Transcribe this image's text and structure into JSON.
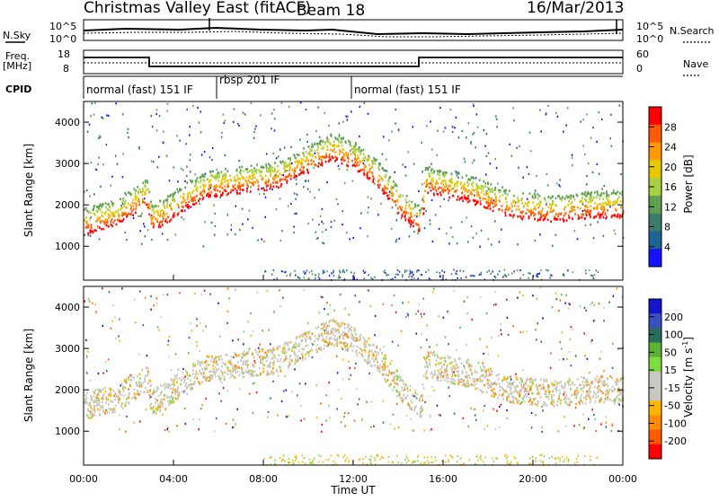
{
  "header": {
    "title": "Christmas Valley East (fitACF)",
    "beam": "Beam 18",
    "date": "16/Mar/2013"
  },
  "noise_panel": {
    "left_label": "N.Sky",
    "right_label": "N.Search",
    "y_ticks_left": [
      "10^5",
      "10^0"
    ],
    "y_ticks_right": [
      "10^5",
      "10^0"
    ]
  },
  "freq_panel": {
    "left_label_line1": "Freq.",
    "left_label_line2": "[MHz]",
    "right_label": "Nave",
    "y_ticks_left": [
      "18",
      "8"
    ],
    "y_ticks_right": [
      "60",
      "0"
    ]
  },
  "cpid_panel": {
    "label": "CPID",
    "segments": [
      {
        "label": "normal (fast) 151 IF",
        "start": 0,
        "end": 6.0
      },
      {
        "label": "rbsp 201 IF",
        "start": 6.0,
        "end": 12.0
      },
      {
        "label": "normal (fast) 151 IF",
        "start": 12.0,
        "end": 24.0
      }
    ]
  },
  "chart_data": [
    {
      "type": "heatmap",
      "name": "power",
      "ylabel": "Slant Range [km]",
      "y_ticks": [
        1000,
        2000,
        3000,
        4000
      ],
      "ylim": [
        180,
        4500
      ],
      "colorbar": {
        "label": "Power [dB]",
        "ticks": [
          "28",
          "24",
          "20",
          "16",
          "12",
          "8",
          "4"
        ],
        "colors": [
          "#ff0000",
          "#ff5a00",
          "#ff9b00",
          "#e5c800",
          "#a8d040",
          "#5fa050",
          "#3c7c6c",
          "#1e6494",
          "#1414ff"
        ]
      },
      "x_ticks": [
        "00:00",
        "04:00",
        "08:00",
        "12:00",
        "16:00",
        "20:00",
        "00:00"
      ],
      "xlim_hours": [
        0,
        24
      ]
    },
    {
      "type": "heatmap",
      "name": "velocity",
      "ylabel": "Slant Range [km]",
      "y_ticks": [
        1000,
        2000,
        3000,
        4000
      ],
      "ylim": [
        180,
        4500
      ],
      "colorbar": {
        "label": "Velocity [m s",
        "label_sup": "-1",
        "label_end": "]",
        "ticks": [
          "200",
          "100",
          "50",
          "15",
          "-15",
          "-50",
          "-100",
          "-200"
        ],
        "colors": [
          "#1414c8",
          "#3c50c0",
          "#286e5a",
          "#5ab432",
          "#7cdc40",
          "#c8c8c0",
          "#c8c8c0",
          "#ffb400",
          "#ff8c00",
          "#ff5a00",
          "#ff0000"
        ]
      },
      "x_ticks": [
        "00:00",
        "04:00",
        "08:00",
        "12:00",
        "16:00",
        "20:00",
        "00:00"
      ],
      "xlabel": "Time UT",
      "xlim_hours": [
        0,
        24
      ]
    }
  ]
}
